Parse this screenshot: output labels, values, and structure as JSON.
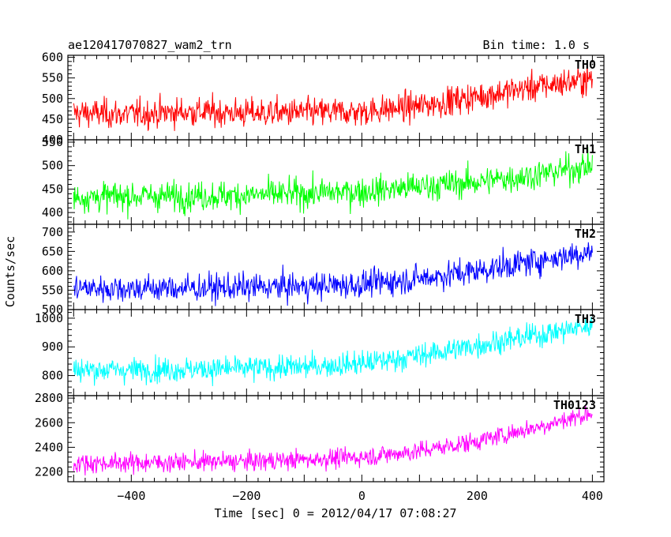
{
  "header": {
    "title": "ae120417070827_wam2_trn",
    "bin_time": "Bin time: 1.0 s"
  },
  "chart_data": {
    "type": "line",
    "title": "ae120417070827_wam2_trn",
    "subtitle": "Bin time: 1.0 s",
    "xlabel": "Time [sec] 0 = 2012/04/17 07:08:27",
    "ylabel": "Counts/sec",
    "xlim": [
      -510,
      420
    ],
    "xticks": [
      -400,
      -200,
      0,
      200,
      400
    ],
    "grid": false,
    "series_shape": "noisy 1 s binned light curve, roughly flat from -500 to 0 s, then rising linearly to the end at 400 s",
    "panels": [
      {
        "name": "TH0",
        "color": "#ff0000",
        "ylim": [
          400,
          605
        ],
        "yticks": [
          400,
          450,
          500,
          550,
          600
        ],
        "x": [
          -500,
          -400,
          -300,
          -200,
          -100,
          0,
          100,
          200,
          300,
          400
        ],
        "values": [
          465,
          462,
          468,
          465,
          466,
          468,
          482,
          505,
          528,
          548
        ],
        "noise_sd": 25
      },
      {
        "name": "TH1",
        "color": "#00ff00",
        "ylim": [
          375,
          555
        ],
        "yticks": [
          400,
          450,
          500,
          550
        ],
        "x": [
          -500,
          -400,
          -300,
          -200,
          -100,
          0,
          100,
          200,
          300,
          400
        ],
        "values": [
          432,
          435,
          435,
          437,
          440,
          445,
          455,
          465,
          480,
          500
        ],
        "noise_sd": 22
      },
      {
        "name": "TH2",
        "color": "#0000ff",
        "ylim": [
          500,
          720
        ],
        "yticks": [
          500,
          550,
          600,
          650,
          700
        ],
        "x": [
          -500,
          -400,
          -300,
          -200,
          -100,
          0,
          100,
          200,
          300,
          400
        ],
        "values": [
          555,
          555,
          555,
          557,
          560,
          565,
          580,
          600,
          625,
          650
        ],
        "noise_sd": 25
      },
      {
        "name": "TH3",
        "color": "#00ffff",
        "ylim": [
          730,
          1030
        ],
        "yticks": [
          800,
          900,
          1000
        ],
        "x": [
          -500,
          -400,
          -300,
          -200,
          -100,
          0,
          100,
          200,
          300,
          400
        ],
        "values": [
          820,
          820,
          822,
          825,
          830,
          842,
          870,
          905,
          940,
          975
        ],
        "noise_sd": 30
      },
      {
        "name": "TH0123",
        "color": "#ff00ff",
        "ylim": [
          2120,
          2820
        ],
        "yticks": [
          2200,
          2400,
          2600,
          2800
        ],
        "x": [
          -500,
          -400,
          -300,
          -200,
          -100,
          0,
          100,
          200,
          300,
          400
        ],
        "values": [
          2270,
          2275,
          2280,
          2285,
          2300,
          2320,
          2370,
          2450,
          2560,
          2680
        ],
        "noise_sd": 55
      }
    ]
  }
}
